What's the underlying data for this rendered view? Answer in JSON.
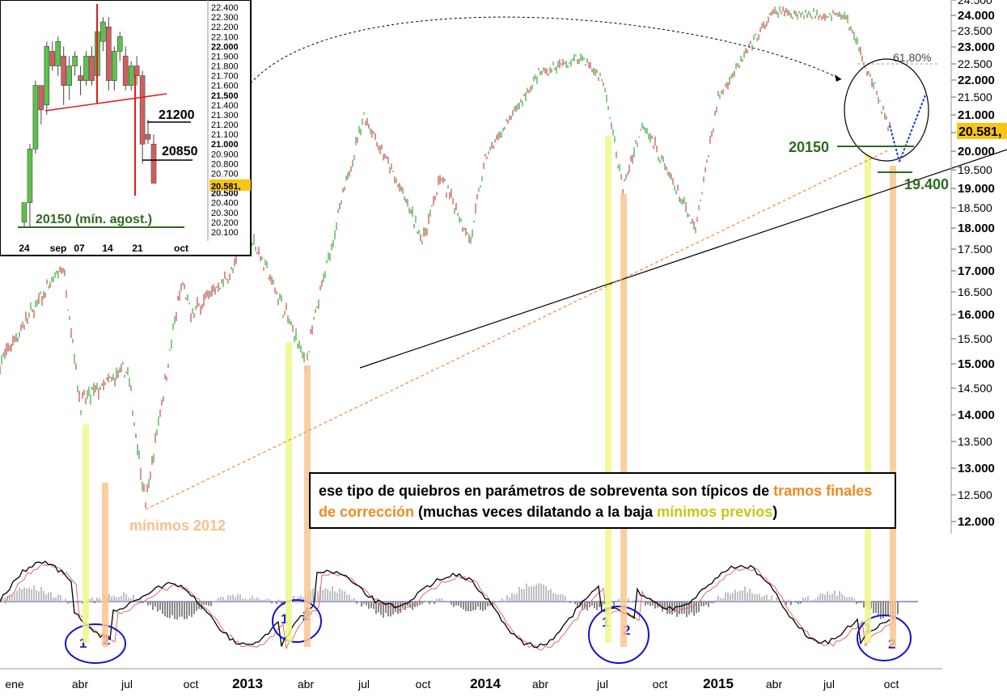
{
  "chart_data": {
    "type": "line",
    "axis": {
      "y_ticks": [
        "12.000",
        "12.500",
        "13.000",
        "13.500",
        "14.000",
        "14.500",
        "15.000",
        "15.500",
        "16.000",
        "16.500",
        "17.000",
        "17.500",
        "18.000",
        "18.500",
        "19.000",
        "19.500",
        "20.000",
        "20.500",
        "21.000",
        "21.500",
        "22.000",
        "22.500",
        "23.000",
        "23.500",
        "24.000",
        "24.500"
      ],
      "y_tick_values": [
        12000,
        12500,
        13000,
        13500,
        14000,
        14500,
        15000,
        15500,
        16000,
        16500,
        17000,
        17500,
        18000,
        18500,
        19000,
        19500,
        20000,
        20500,
        21000,
        21500,
        22000,
        22500,
        23000,
        23500,
        24000,
        24500
      ],
      "ylim": [
        12000,
        24500
      ],
      "x_labels": [
        "ene",
        "abr",
        "jul",
        "oct",
        "2013",
        "abr",
        "jul",
        "oct",
        "2014",
        "abr",
        "jul",
        "oct",
        "2015",
        "abr",
        "jul",
        "oct"
      ],
      "current_value": "20.581,"
    },
    "price_anchors": [
      {
        "x_label": "ene",
        "value": 15000
      },
      {
        "x_label": "mar 2012",
        "value": 17100
      },
      {
        "x_label": "abr",
        "value": 14200
      },
      {
        "x_label": "jun 2012",
        "value": 12300
      },
      {
        "x_label": "ago 2012",
        "value": 16700
      },
      {
        "x_label": "oct",
        "value": 16000
      },
      {
        "x_label": "dic 2012",
        "value": 17000
      },
      {
        "x_label": "2013",
        "value": 18000
      },
      {
        "x_label": "abr",
        "value": 15000
      },
      {
        "x_label": "may 2013",
        "value": 17600
      },
      {
        "x_label": "jul",
        "value": 14900
      },
      {
        "x_label": "sep 2013",
        "value": 19300
      },
      {
        "x_label": "nov 2013",
        "value": 17700
      },
      {
        "x_label": "2014",
        "value": 19800
      },
      {
        "x_label": "abr",
        "value": 22200
      },
      {
        "x_label": "jun 2014",
        "value": 22700
      },
      {
        "x_label": "jul",
        "value": 21000
      },
      {
        "x_label": "ago 2014",
        "value": 19000
      },
      {
        "x_label": "sep 2014",
        "value": 20800
      },
      {
        "x_label": "oct",
        "value": 17700
      },
      {
        "x_label": "dic 2014",
        "value": 17900
      },
      {
        "x_label": "2015",
        "value": 21500
      },
      {
        "x_label": "abr",
        "value": 24100
      },
      {
        "x_label": "jul",
        "value": 22000
      },
      {
        "x_label": "ago 2015",
        "value": 24000
      },
      {
        "x_label": "sep 2015",
        "value": 20600
      }
    ],
    "annotations": {
      "fib_label": "61,80%",
      "level_20150": "20150",
      "level_19400": "19.400",
      "minimos_2012": "mínimos 2012"
    },
    "note": {
      "p1": "ese tipo de quiebros en parámetros de sobreventa son típicos de ",
      "p2": "tramos finales de corrección",
      "p3": " (muchas veces dilatando a la baja ",
      "p4": "mínimos previos",
      "p5": ")"
    },
    "oscillator_labels": [
      "1",
      "2",
      "1",
      "2",
      "1",
      "2",
      "1",
      "2"
    ],
    "inset": {
      "y_ticks": [
        "20.100",
        "20.200",
        "20.300",
        "20.400",
        "20.500",
        "20.600",
        "20.700",
        "20.800",
        "20.900",
        "21.000",
        "21.100",
        "21.200",
        "21.300",
        "21.400",
        "21.500",
        "21.600",
        "21.700",
        "21.800",
        "21.900",
        "22.000",
        "22.100",
        "22.200",
        "22.300",
        "22.400"
      ],
      "y_tick_values": [
        20100,
        20200,
        20300,
        20400,
        20500,
        20600,
        20700,
        20800,
        20900,
        21000,
        21100,
        21200,
        21300,
        21400,
        21500,
        21600,
        21700,
        21800,
        21900,
        22000,
        22100,
        22200,
        22300,
        22400
      ],
      "ylim": [
        20050,
        22450
      ],
      "x_labels": [
        "24",
        "sep",
        "07",
        "14",
        "21",
        "oct"
      ],
      "current_value": "20.581,",
      "levels": {
        "l21200": "21200",
        "l20850": "20850",
        "min": "20150 (mín. agost.)"
      },
      "candles": [
        {
          "o": 20200,
          "h": 20400,
          "l": 20150,
          "c": 20400
        },
        {
          "o": 20400,
          "h": 21000,
          "l": 20150,
          "c": 20950
        },
        {
          "o": 20950,
          "h": 21650,
          "l": 20900,
          "c": 21600
        },
        {
          "o": 21600,
          "h": 21600,
          "l": 21200,
          "c": 21350
        },
        {
          "o": 21400,
          "h": 22050,
          "l": 21300,
          "c": 22000
        },
        {
          "o": 21950,
          "h": 22050,
          "l": 21750,
          "c": 21800
        },
        {
          "o": 21800,
          "h": 22100,
          "l": 21700,
          "c": 22050
        },
        {
          "o": 21900,
          "h": 22000,
          "l": 21400,
          "c": 21600
        },
        {
          "o": 21600,
          "h": 21900,
          "l": 21450,
          "c": 21800
        },
        {
          "o": 21800,
          "h": 21950,
          "l": 21700,
          "c": 21900
        },
        {
          "o": 21700,
          "h": 21800,
          "l": 21500,
          "c": 21650
        },
        {
          "o": 21650,
          "h": 21950,
          "l": 21600,
          "c": 21900
        },
        {
          "o": 21900,
          "h": 22000,
          "l": 21600,
          "c": 21650
        },
        {
          "o": 21700,
          "h": 22200,
          "l": 21700,
          "c": 22150
        },
        {
          "o": 22050,
          "h": 22300,
          "l": 21950,
          "c": 22250
        },
        {
          "o": 22200,
          "h": 22300,
          "l": 21550,
          "c": 21650
        },
        {
          "o": 21650,
          "h": 22000,
          "l": 21550,
          "c": 21950
        },
        {
          "o": 21950,
          "h": 22150,
          "l": 21850,
          "c": 22100
        },
        {
          "o": 21900,
          "h": 22000,
          "l": 21550,
          "c": 21600
        },
        {
          "o": 21600,
          "h": 21850,
          "l": 21550,
          "c": 21800
        },
        {
          "o": 21800,
          "h": 21900,
          "l": 21600,
          "c": 21700
        },
        {
          "o": 21700,
          "h": 21750,
          "l": 20800,
          "c": 21000
        },
        {
          "o": 21100,
          "h": 21250,
          "l": 21000,
          "c": 21050
        },
        {
          "o": 21000,
          "h": 21100,
          "l": 20600,
          "c": 20600
        }
      ]
    }
  }
}
